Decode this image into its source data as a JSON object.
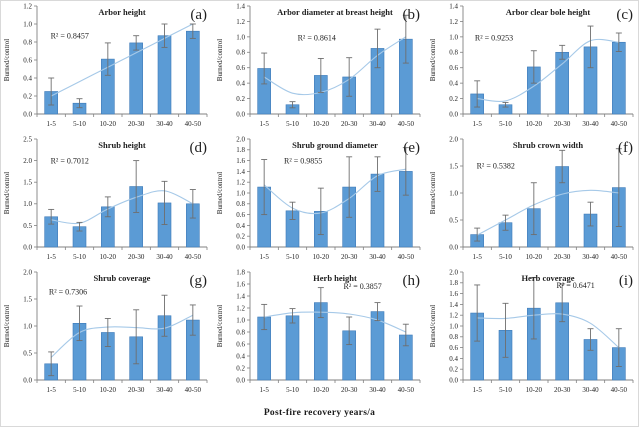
{
  "figure": {
    "xlabel": "Post-fire recovery  years/a",
    "ylabel": "Burned/control",
    "colors": {
      "bar_fill": "#5B9BD5",
      "bar_stroke": "#3D7AB8",
      "error_bar": "#6E6E6E",
      "trend_line": "#A6C9E8",
      "axis": "#808080",
      "text": "#1F1F1F"
    }
  },
  "chart_data": {
    "type": "bar",
    "categories": [
      "1-5",
      "5-10",
      "10-20",
      "20-30",
      "30-40",
      "40-50"
    ],
    "xlabel": "Post-fire recovery  years/a",
    "ylabel": "Burned/control",
    "legend": "none",
    "grid": false,
    "panels": [
      {
        "letter": "(a)",
        "title": "Arbor height",
        "r2_label": "R² = 0.8457",
        "ylim": [
          0,
          1.2
        ],
        "ytick_step": 0.2,
        "values": [
          0.25,
          0.12,
          0.61,
          0.79,
          0.87,
          0.92
        ],
        "errors": [
          0.15,
          0.05,
          0.18,
          0.08,
          0.13,
          0.08
        ],
        "trend": [
          0.2,
          0.36,
          0.52,
          0.68,
          0.84,
          1.0
        ],
        "r2_x": 0.08,
        "r2_y": 0.84
      },
      {
        "letter": "(b)",
        "title": "Arbor diameter at breast height",
        "r2_label": "R² = 0.8614",
        "ylim": [
          0,
          1.4
        ],
        "ytick_step": 0.2,
        "values": [
          0.59,
          0.12,
          0.5,
          0.48,
          0.85,
          0.97
        ],
        "errors": [
          0.2,
          0.04,
          0.22,
          0.25,
          0.25,
          0.31
        ],
        "trend": [
          0.48,
          0.27,
          0.28,
          0.45,
          0.76,
          1.0
        ],
        "r2_x": 0.28,
        "r2_y": 0.95
      },
      {
        "letter": "(c)",
        "title": "Arbor  clear bole height",
        "r2_label": "R² = 0.9253",
        "ylim": [
          0,
          1.4
        ],
        "ytick_step": 0.2,
        "values": [
          0.26,
          0.12,
          0.61,
          0.8,
          0.87,
          0.93
        ],
        "errors": [
          0.17,
          0.03,
          0.21,
          0.09,
          0.27,
          0.12
        ],
        "trend": [
          0.2,
          0.17,
          0.36,
          0.65,
          0.95,
          0.93
        ],
        "r2_x": 0.07,
        "r2_y": 0.95
      },
      {
        "letter": "(d)",
        "title": "Shrub height",
        "r2_label": "R² = 0.7012",
        "ylim": [
          0,
          2.5
        ],
        "ytick_step": 0.5,
        "values": [
          0.7,
          0.47,
          0.93,
          1.4,
          1.02,
          1.0
        ],
        "errors": [
          0.17,
          0.1,
          0.23,
          0.6,
          0.5,
          0.33
        ],
        "trend": [
          0.63,
          0.55,
          0.88,
          1.15,
          1.3,
          1.0
        ],
        "r2_x": 0.08,
        "r2_y": 1.93
      },
      {
        "letter": "(e)",
        "title": "Shrub ground diameter",
        "r2_label": "R² = 0.9855",
        "ylim": [
          0,
          2.0
        ],
        "ytick_step": 0.2,
        "values": [
          1.11,
          0.67,
          0.66,
          1.11,
          1.35,
          1.4
        ],
        "errors": [
          0.51,
          0.16,
          0.43,
          0.56,
          0.32,
          0.44
        ],
        "trend": [
          1.15,
          0.72,
          0.63,
          0.9,
          1.32,
          1.44
        ],
        "r2_x": 0.2,
        "r2_y": 1.55
      },
      {
        "letter": "(f)",
        "title": "Shrub crown width",
        "r2_label": "R² = 0.5382",
        "ylim": [
          0,
          2.0
        ],
        "ytick_step": 0.5,
        "values": [
          0.23,
          0.45,
          0.71,
          1.49,
          0.61,
          1.1
        ],
        "errors": [
          0.12,
          0.14,
          0.48,
          0.3,
          0.22,
          0.72
        ],
        "trend": [
          0.22,
          0.5,
          0.78,
          0.98,
          1.05,
          1.0
        ],
        "r2_x": 0.08,
        "r2_y": 1.45
      },
      {
        "letter": "(g)",
        "title": "Shrub coverage",
        "r2_label": "R² = 0.7306",
        "ylim": [
          0,
          2.0
        ],
        "ytick_step": 0.5,
        "values": [
          0.3,
          1.05,
          0.88,
          0.8,
          1.19,
          1.11
        ],
        "errors": [
          0.22,
          0.32,
          0.26,
          0.5,
          0.38,
          0.28
        ],
        "trend": [
          0.42,
          0.88,
          0.98,
          0.97,
          0.96,
          1.2
        ],
        "r2_x": 0.07,
        "r2_y": 1.58
      },
      {
        "letter": "(h)",
        "title": "Herb height",
        "r2_label": "R² = 0.3857",
        "ylim": [
          0,
          1.8
        ],
        "ytick_step": 0.2,
        "values": [
          1.05,
          1.07,
          1.29,
          0.82,
          1.14,
          0.75
        ],
        "errors": [
          0.21,
          0.12,
          0.25,
          0.23,
          0.15,
          0.18
        ],
        "trend": [
          1.05,
          1.12,
          1.13,
          1.1,
          1.0,
          0.8
        ],
        "r2_x": 0.55,
        "r2_y": 1.52
      },
      {
        "letter": "(i)",
        "title": "Herb  coverage",
        "r2_label": "R² = 0.6471",
        "ylim": [
          0,
          2.0
        ],
        "ytick_step": 0.2,
        "values": [
          1.24,
          0.92,
          1.33,
          1.43,
          0.75,
          0.6
        ],
        "errors": [
          0.52,
          0.5,
          0.57,
          0.35,
          0.2,
          0.35
        ],
        "trend": [
          1.15,
          1.14,
          1.2,
          1.22,
          1.05,
          0.6
        ],
        "r2_x": 0.55,
        "r2_y": 1.7
      }
    ]
  }
}
